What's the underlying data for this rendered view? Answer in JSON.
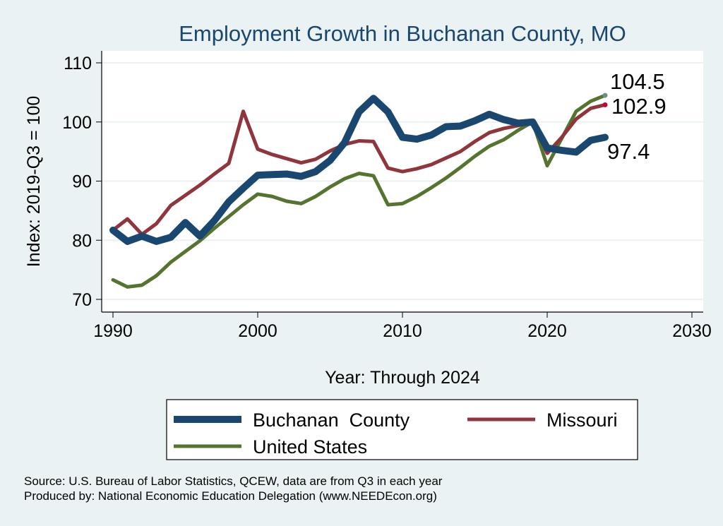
{
  "chart_data": {
    "type": "line",
    "title": "Employment Growth in Buchanan County, MO",
    "xlabel": "Year: Through 2024",
    "ylabel": "Index: 2019-Q3 = 100",
    "xlim": [
      1990,
      2030
    ],
    "ylim": [
      70,
      110
    ],
    "xticks": [
      1990,
      2000,
      2010,
      2020,
      2030
    ],
    "yticks": [
      70,
      80,
      90,
      100,
      110
    ],
    "grid": true,
    "legend_position": "bottom",
    "x": [
      1990,
      1991,
      1992,
      1993,
      1994,
      1995,
      1996,
      1997,
      1998,
      1999,
      2000,
      2001,
      2002,
      2003,
      2004,
      2005,
      2006,
      2007,
      2008,
      2009,
      2010,
      2011,
      2012,
      2013,
      2014,
      2015,
      2016,
      2017,
      2018,
      2019,
      2020,
      2021,
      2022,
      2023,
      2024
    ],
    "series": [
      {
        "name": "Buchanan  County",
        "color": "#1a476f",
        "end_label": "97.4",
        "values": [
          81.7,
          79.8,
          80.7,
          79.8,
          80.5,
          83.0,
          80.7,
          83.3,
          86.5,
          88.8,
          91.0,
          91.1,
          91.2,
          90.8,
          91.6,
          93.5,
          96.5,
          101.7,
          104.0,
          101.7,
          97.4,
          97.1,
          97.8,
          99.2,
          99.3,
          100.2,
          101.3,
          100.4,
          99.8,
          100.0,
          95.6,
          95.2,
          94.9,
          96.9,
          97.4
        ]
      },
      {
        "name": "Missouri",
        "color": "#90353b",
        "end_label": "102.9",
        "end_marker_color": "#c10534",
        "values": [
          81.7,
          83.6,
          81.0,
          82.8,
          85.9,
          87.6,
          89.3,
          91.2,
          93.0,
          101.8,
          95.4,
          94.5,
          93.8,
          93.1,
          93.7,
          95.1,
          96.2,
          96.8,
          96.7,
          92.2,
          91.6,
          92.1,
          92.8,
          93.9,
          95.0,
          96.7,
          98.2,
          98.9,
          99.4,
          100.0,
          94.7,
          97.4,
          100.5,
          102.3,
          102.9
        ]
      },
      {
        "name": "United States",
        "color": "#55752f",
        "end_label": "104.5",
        "end_marker_color": "#6e8e84",
        "values": [
          73.3,
          72.1,
          72.4,
          74.0,
          76.3,
          78.1,
          79.9,
          82.0,
          84.0,
          86.0,
          87.8,
          87.4,
          86.6,
          86.2,
          87.4,
          89.0,
          90.4,
          91.3,
          90.9,
          86.0,
          86.2,
          87.4,
          88.9,
          90.5,
          92.3,
          94.2,
          95.9,
          97.0,
          98.6,
          100.0,
          92.6,
          97.2,
          101.8,
          103.5,
          104.5
        ]
      }
    ],
    "notes": [
      "Source: U.S. Bureau of Labor Statistics, QCEW, data are from Q3 in each year",
      "Produced by: National Economic Education Delegation (www.NEEDEcon.org)"
    ]
  }
}
